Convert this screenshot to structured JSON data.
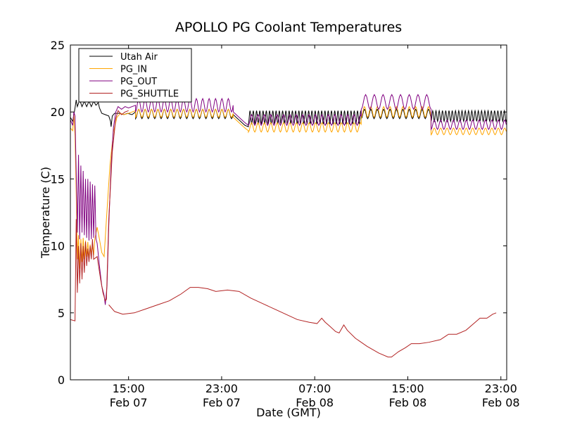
{
  "chart_data": {
    "type": "line",
    "title": "APOLLO PG Coolant Temperatures",
    "xlabel": "Date (GMT)",
    "ylabel": "Temperature (C)",
    "x_unit": "hours since 2012-02-07 00:00 GMT",
    "xlim": [
      10.0,
      47.5
    ],
    "ylim": [
      0,
      25
    ],
    "yticks": [
      0,
      5,
      10,
      15,
      20,
      25
    ],
    "xticks": [
      {
        "x": 15,
        "time": "15:00",
        "date": "Feb 07"
      },
      {
        "x": 23,
        "time": "23:00",
        "date": "Feb 07"
      },
      {
        "x": 31,
        "time": "07:00",
        "date": "Feb 08"
      },
      {
        "x": 39,
        "time": "15:00",
        "date": "Feb 08"
      },
      {
        "x": 47,
        "time": "23:00",
        "date": "Feb 08"
      }
    ],
    "legend_position": "top-left",
    "series": [
      {
        "name": "Utah Air",
        "color": "#000000",
        "points": [
          [
            10.0,
            19.6
          ],
          [
            10.2,
            19.3
          ],
          [
            10.4,
            20.3
          ],
          [
            10.5,
            20.9
          ],
          [
            10.6,
            20.4
          ],
          [
            10.8,
            20.9
          ],
          [
            11.0,
            20.4
          ],
          [
            11.2,
            20.8
          ],
          [
            11.4,
            20.4
          ],
          [
            11.6,
            20.8
          ],
          [
            11.8,
            20.4
          ],
          [
            12.0,
            20.8
          ],
          [
            12.2,
            20.5
          ],
          [
            12.4,
            20.7
          ],
          [
            12.5,
            20.3
          ],
          [
            12.7,
            19.9
          ],
          [
            13.0,
            19.8
          ],
          [
            13.3,
            19.7
          ],
          [
            13.45,
            19.3
          ],
          [
            13.5,
            18.9
          ],
          [
            13.6,
            19.7
          ],
          [
            13.8,
            19.9
          ],
          [
            14.2,
            19.9
          ],
          [
            14.6,
            19.8
          ],
          [
            14.9,
            19.9
          ],
          [
            15.3,
            19.8
          ],
          [
            15.6,
            20.0
          ]
        ],
        "oscillations": [
          {
            "x_start": 15.6,
            "x_end": 24.0,
            "period": 0.55,
            "low": 19.5,
            "high": 20.2
          },
          {
            "x_start": 24.0,
            "x_end": 25.3,
            "base": [
              [
                24.0,
                19.8
              ],
              [
                25.0,
                19.0
              ],
              [
                25.3,
                18.9
              ]
            ]
          },
          {
            "x_start": 25.3,
            "x_end": 35.0,
            "period": 0.28,
            "low": 19.1,
            "high": 20.1
          },
          {
            "x_start": 35.0,
            "x_end": 41.0,
            "period": 0.55,
            "low": 19.5,
            "high": 20.2
          },
          {
            "x_start": 41.0,
            "x_end": 47.5,
            "period": 0.28,
            "low": 19.3,
            "high": 20.1
          }
        ]
      },
      {
        "name": "PG_IN",
        "color": "#ffa500",
        "points": [
          [
            10.0,
            18.8
          ],
          [
            10.2,
            18.6
          ],
          [
            10.3,
            19.8
          ],
          [
            10.4,
            18.2
          ],
          [
            10.5,
            14.0
          ],
          [
            10.6,
            9.0
          ],
          [
            10.7,
            10.8
          ],
          [
            10.8,
            8.3
          ],
          [
            10.9,
            10.5
          ],
          [
            11.0,
            8.8
          ],
          [
            11.1,
            10.6
          ],
          [
            11.2,
            9.0
          ],
          [
            11.3,
            10.4
          ],
          [
            11.4,
            9.2
          ],
          [
            11.5,
            10.3
          ],
          [
            11.6,
            9.0
          ],
          [
            11.7,
            10.1
          ],
          [
            11.8,
            9.4
          ],
          [
            11.9,
            10.0
          ],
          [
            12.0,
            9.3
          ],
          [
            12.1,
            10.5
          ],
          [
            12.3,
            11.4
          ],
          [
            12.5,
            10.5
          ],
          [
            12.7,
            9.5
          ],
          [
            12.9,
            9.2
          ],
          [
            13.1,
            12.0
          ],
          [
            13.4,
            16.0
          ],
          [
            13.7,
            18.5
          ],
          [
            14.0,
            19.6
          ],
          [
            14.3,
            19.9
          ],
          [
            14.6,
            19.8
          ],
          [
            15.0,
            19.9
          ],
          [
            15.6,
            20.1
          ]
        ],
        "oscillations": [
          {
            "x_start": 15.6,
            "x_end": 24.0,
            "period": 0.55,
            "low": 19.6,
            "high": 20.2
          },
          {
            "x_start": 24.0,
            "x_end": 25.3,
            "base": [
              [
                24.0,
                19.6
              ],
              [
                25.0,
                18.8
              ],
              [
                25.3,
                18.6
              ]
            ]
          },
          {
            "x_start": 25.3,
            "x_end": 35.0,
            "period": 0.55,
            "low": 18.5,
            "high": 19.2
          },
          {
            "x_start": 35.0,
            "x_end": 41.0,
            "period": 0.55,
            "low": 19.6,
            "high": 20.4
          },
          {
            "x_start": 41.0,
            "x_end": 47.5,
            "period": 0.55,
            "low": 18.3,
            "high": 18.8
          }
        ]
      },
      {
        "name": "PG_OUT",
        "color": "#800080",
        "points": [
          [
            10.0,
            19.4
          ],
          [
            10.2,
            19.0
          ],
          [
            10.3,
            20.0
          ],
          [
            10.4,
            19.7
          ],
          [
            10.5,
            15.5
          ],
          [
            10.6,
            11.0
          ],
          [
            10.7,
            16.8
          ],
          [
            10.8,
            10.5
          ],
          [
            10.9,
            16.0
          ],
          [
            11.0,
            11.0
          ],
          [
            11.1,
            15.6
          ],
          [
            11.2,
            10.8
          ],
          [
            11.3,
            15.0
          ],
          [
            11.4,
            10.6
          ],
          [
            11.5,
            15.0
          ],
          [
            11.6,
            10.4
          ],
          [
            11.7,
            14.8
          ],
          [
            11.8,
            10.5
          ],
          [
            11.9,
            14.6
          ],
          [
            12.0,
            10.6
          ],
          [
            12.1,
            14.5
          ],
          [
            12.2,
            10.5
          ],
          [
            12.3,
            10.2
          ],
          [
            12.5,
            8.5
          ],
          [
            12.7,
            7.0
          ],
          [
            12.9,
            6.3
          ],
          [
            13.0,
            5.6
          ],
          [
            13.15,
            7.0
          ],
          [
            13.3,
            11.5
          ],
          [
            13.5,
            16.0
          ],
          [
            13.7,
            18.8
          ],
          [
            13.9,
            20.0
          ],
          [
            14.1,
            20.4
          ],
          [
            14.4,
            20.2
          ],
          [
            14.7,
            20.4
          ],
          [
            15.0,
            20.3
          ],
          [
            15.6,
            20.5
          ]
        ],
        "oscillations": [
          {
            "x_start": 15.6,
            "x_end": 24.0,
            "period": 0.55,
            "low": 20.0,
            "high": 21.0
          },
          {
            "x_start": 24.0,
            "x_end": 25.3,
            "base": [
              [
                24.0,
                20.0
              ],
              [
                25.0,
                19.2
              ],
              [
                25.3,
                19.0
              ]
            ]
          },
          {
            "x_start": 25.3,
            "x_end": 35.0,
            "period": 0.55,
            "low": 19.0,
            "high": 19.8
          },
          {
            "x_start": 35.0,
            "x_end": 41.0,
            "period": 0.75,
            "low": 20.2,
            "high": 21.3
          },
          {
            "x_start": 41.0,
            "x_end": 47.5,
            "period": 0.55,
            "low": 18.7,
            "high": 19.4
          }
        ]
      },
      {
        "name": "PG_SHUTTLE",
        "color": "#b22222",
        "points": [
          [
            10.0,
            4.5
          ],
          [
            10.4,
            4.4
          ],
          [
            10.5,
            12.0
          ],
          [
            10.6,
            6.5
          ],
          [
            10.7,
            10.0
          ],
          [
            10.8,
            7.2
          ],
          [
            10.9,
            10.2
          ],
          [
            11.0,
            7.5
          ],
          [
            11.1,
            10.0
          ],
          [
            11.2,
            8.0
          ],
          [
            11.3,
            10.3
          ],
          [
            11.4,
            8.5
          ],
          [
            11.5,
            9.8
          ],
          [
            11.6,
            8.8
          ],
          [
            11.7,
            10.0
          ],
          [
            11.8,
            9.0
          ],
          [
            11.9,
            10.5
          ],
          [
            12.0,
            9.0
          ],
          [
            12.3,
            9.2
          ],
          [
            12.6,
            7.5
          ],
          [
            12.8,
            6.5
          ],
          [
            13.0,
            5.9
          ],
          [
            13.1,
            6.0
          ],
          [
            13.3,
            12.0
          ],
          [
            13.6,
            17.0
          ],
          [
            13.9,
            19.5
          ],
          [
            14.1,
            20.1
          ],
          [
            14.4,
            19.8
          ],
          [
            14.7,
            20.0
          ],
          [
            15.0,
            20.1
          ]
        ],
        "tail_points": [
          [
            13.3,
            5.6
          ],
          [
            13.8,
            5.1
          ],
          [
            14.5,
            4.9
          ],
          [
            15.5,
            5.0
          ],
          [
            16.5,
            5.3
          ],
          [
            17.5,
            5.6
          ],
          [
            18.5,
            5.9
          ],
          [
            19.5,
            6.4
          ],
          [
            20.3,
            6.9
          ],
          [
            21.0,
            6.9
          ],
          [
            21.8,
            6.8
          ],
          [
            22.5,
            6.6
          ],
          [
            23.5,
            6.7
          ],
          [
            24.5,
            6.6
          ],
          [
            25.5,
            6.1
          ],
          [
            26.5,
            5.7
          ],
          [
            27.5,
            5.3
          ],
          [
            28.5,
            4.9
          ],
          [
            29.5,
            4.5
          ],
          [
            30.5,
            4.3
          ],
          [
            31.2,
            4.2
          ],
          [
            31.6,
            4.6
          ],
          [
            31.9,
            4.3
          ],
          [
            32.3,
            4.0
          ],
          [
            32.8,
            3.6
          ],
          [
            33.1,
            3.5
          ],
          [
            33.5,
            4.1
          ],
          [
            33.8,
            3.7
          ],
          [
            34.5,
            3.1
          ],
          [
            35.5,
            2.5
          ],
          [
            36.5,
            2.0
          ],
          [
            37.3,
            1.7
          ],
          [
            37.6,
            1.7
          ],
          [
            38.2,
            2.1
          ],
          [
            38.8,
            2.4
          ],
          [
            39.3,
            2.7
          ],
          [
            40.0,
            2.7
          ],
          [
            40.8,
            2.8
          ],
          [
            41.8,
            3.0
          ],
          [
            42.5,
            3.4
          ],
          [
            43.2,
            3.4
          ],
          [
            44.0,
            3.7
          ],
          [
            44.8,
            4.3
          ],
          [
            45.2,
            4.6
          ],
          [
            45.8,
            4.6
          ],
          [
            46.3,
            4.9
          ],
          [
            46.6,
            5.0
          ]
        ]
      }
    ]
  }
}
